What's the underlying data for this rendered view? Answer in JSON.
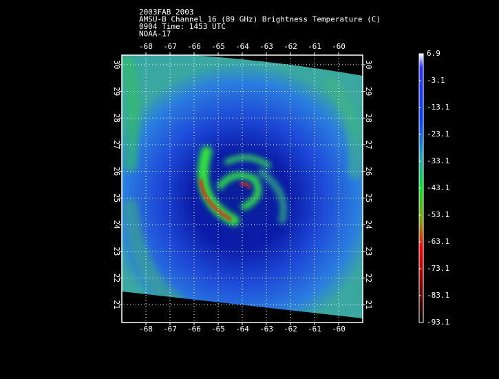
{
  "title_lines": [
    "2003FAB 2003",
    "AMSU-B Channel 16 (89 GHz) Brightness Temperature (C)",
    "0904 Time: 1453 UTC",
    "NOAA-17"
  ],
  "map": {
    "xlim": [
      -69,
      -59
    ],
    "xticks": [
      -68,
      -67,
      -66,
      -65,
      -64,
      -63,
      -62,
      -61,
      -60
    ],
    "ylim": [
      20.33,
      30.36
    ],
    "yticks": [
      21,
      22,
      23,
      24,
      25,
      26,
      27,
      28,
      29,
      30
    ],
    "grid": true
  },
  "colorbar": {
    "lim": [
      -93.1,
      6.9
    ],
    "ticks": [
      6.9,
      -3.1,
      -13.1,
      -23.1,
      -33.1,
      -43.1,
      -53.1,
      -63.1,
      -73.1,
      -83.1,
      -93.1
    ]
  }
}
